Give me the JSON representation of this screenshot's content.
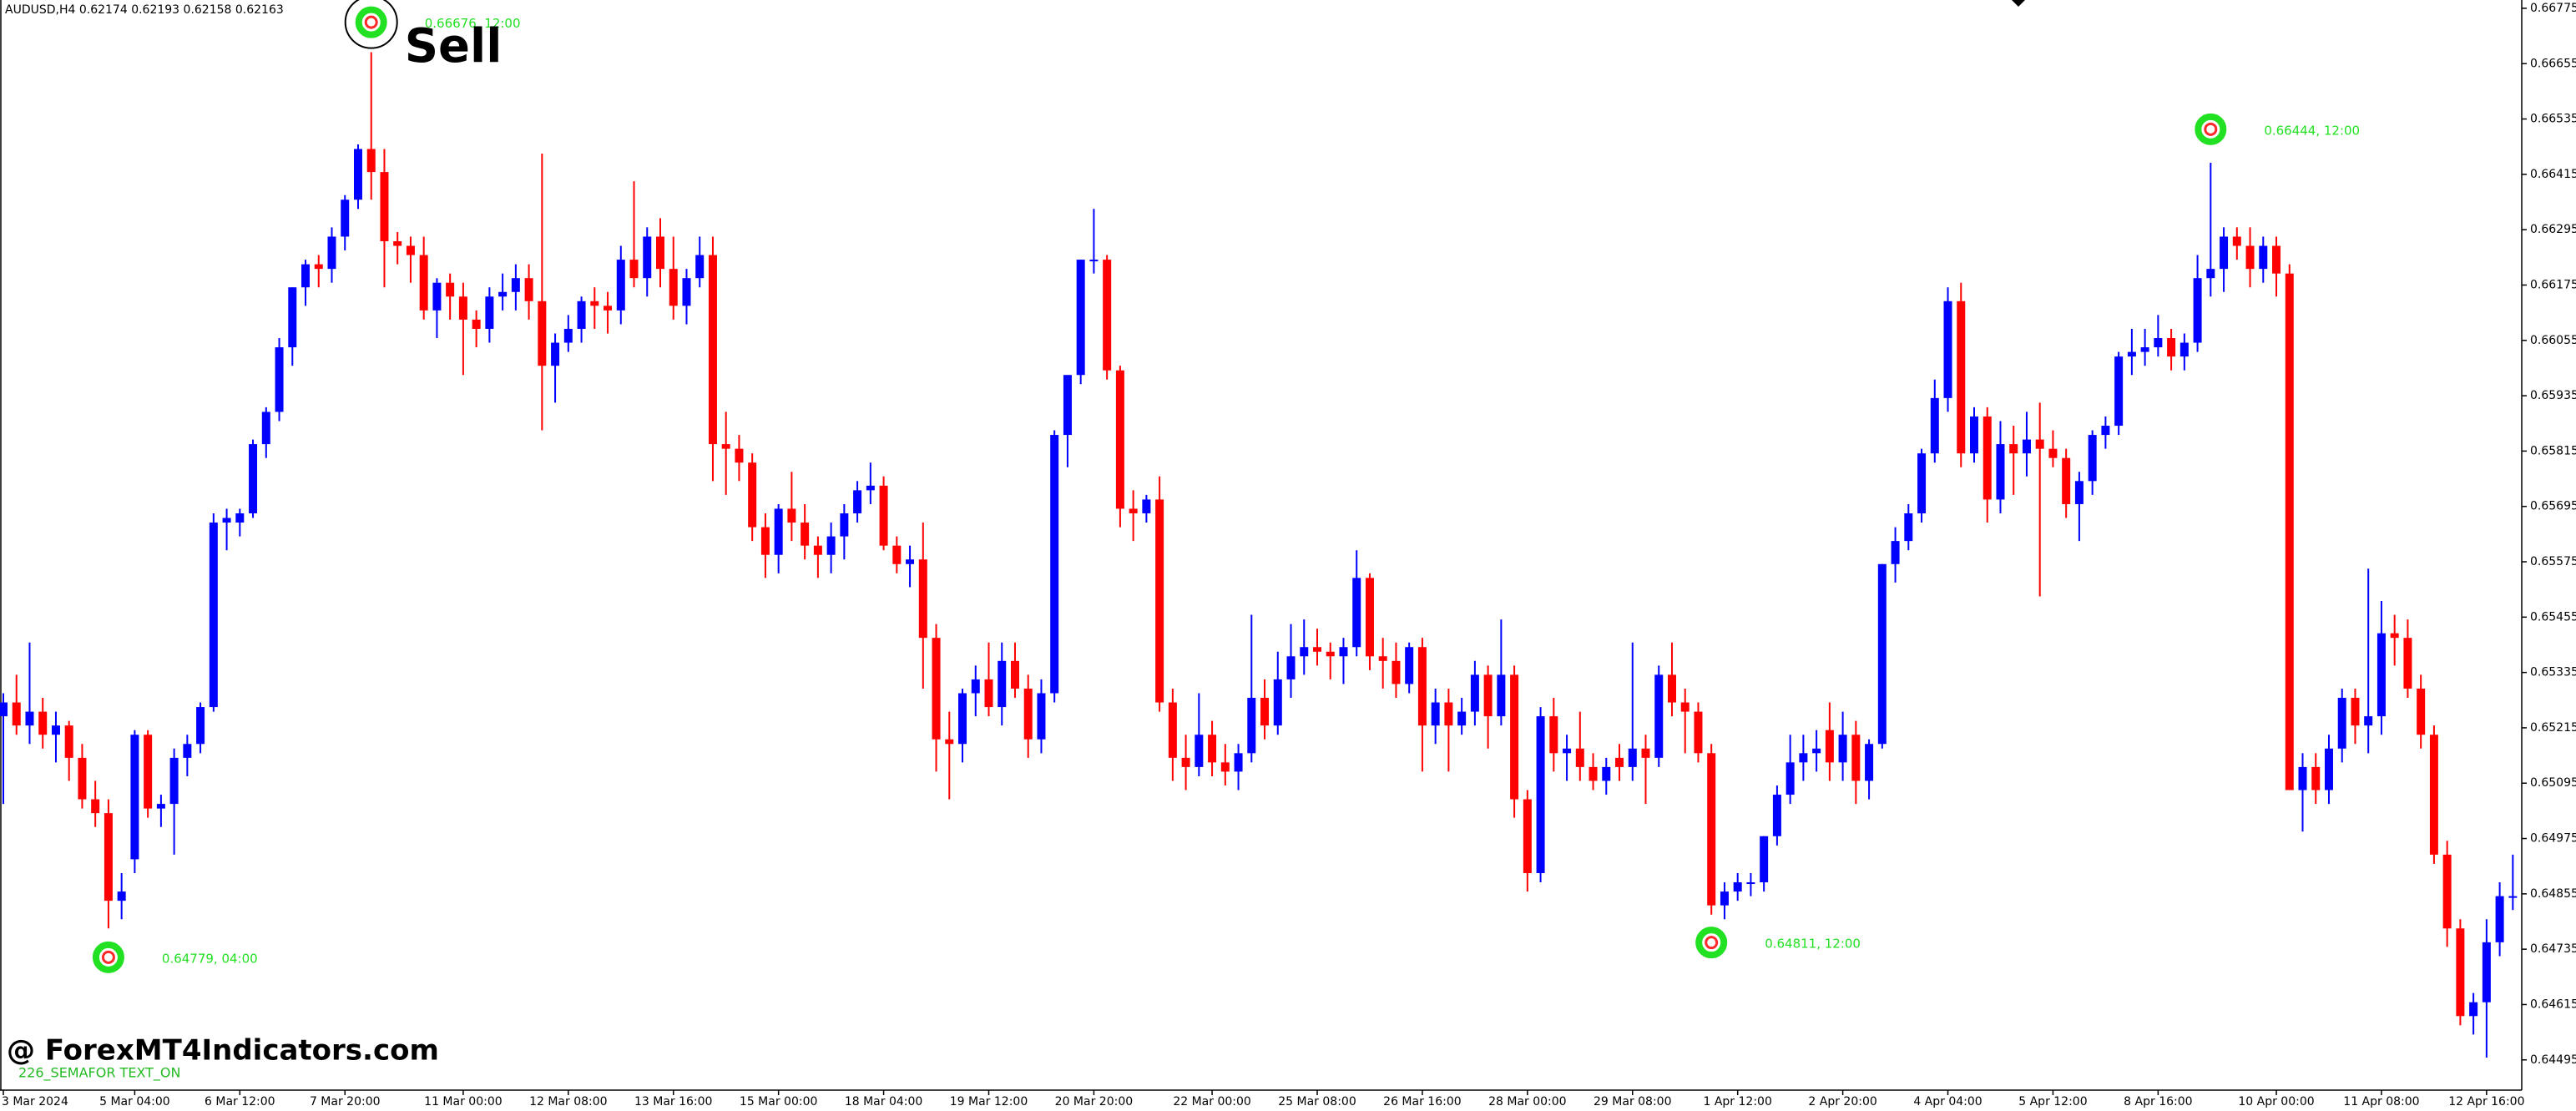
{
  "chart_data": {
    "type": "candlestick",
    "title": "AUDUSD,H4  0.62174 0.62193 0.62158 0.62163",
    "up_color": "#0000ff",
    "down_color": "#ff0000",
    "watermark": "@ ForexMT4Indicators.com",
    "indicator_label": "226_SEMAFOR TEXT_ON",
    "annotations": [
      {
        "label": "0.66676, 12:00",
        "value": 0.66676,
        "signal": "Sell"
      },
      {
        "label": "0.64779, 04:00",
        "value": 0.64779
      },
      {
        "label": "0.64811, 12:00",
        "value": 0.64811
      },
      {
        "label": "0.66444, 12:00",
        "value": 0.66444
      }
    ],
    "ylim": [
      0.64424,
      0.66793
    ],
    "yticks": [
      0.66775,
      0.66655,
      0.66535,
      0.66415,
      0.66295,
      0.66175,
      0.66055,
      0.65935,
      0.65815,
      0.65695,
      0.65575,
      0.65455,
      0.65335,
      0.65215,
      0.65095,
      0.64975,
      0.64855,
      0.64735,
      0.64615,
      0.64495
    ],
    "categories": [
      "3 Mar 2024",
      null,
      null,
      null,
      null,
      null,
      null,
      null,
      null,
      null,
      "5 Mar 04:00",
      null,
      null,
      null,
      null,
      null,
      null,
      null,
      "6 Mar 12:00",
      null,
      null,
      null,
      null,
      null,
      null,
      null,
      "7 Mar 20:00",
      null,
      null,
      null,
      null,
      null,
      null,
      null,
      null,
      "11 Mar 00:00",
      null,
      null,
      null,
      null,
      null,
      null,
      null,
      "12 Mar 08:00",
      null,
      null,
      null,
      null,
      null,
      null,
      null,
      "13 Mar 16:00",
      null,
      null,
      null,
      null,
      null,
      null,
      null,
      "15 Mar 00:00",
      null,
      null,
      null,
      null,
      null,
      null,
      null,
      "18 Mar 04:00",
      null,
      null,
      null,
      null,
      null,
      null,
      null,
      "19 Mar 12:00",
      null,
      null,
      null,
      null,
      null,
      null,
      null,
      "20 Mar 20:00",
      null,
      null,
      null,
      null,
      null,
      null,
      null,
      null,
      "22 Mar 00:00",
      null,
      null,
      null,
      null,
      null,
      null,
      null,
      "25 Mar 08:00",
      null,
      null,
      null,
      null,
      null,
      null,
      null,
      "26 Mar 16:00",
      null,
      null,
      null,
      null,
      null,
      null,
      null,
      "28 Mar 00:00",
      null,
      null,
      null,
      null,
      null,
      null,
      null,
      "29 Mar 08:00",
      null,
      null,
      null,
      null,
      null,
      null,
      null,
      "1 Apr 12:00",
      null,
      null,
      null,
      null,
      null,
      null,
      null,
      "2 Apr 20:00",
      null,
      null,
      null,
      null,
      null,
      null,
      null,
      "4 Apr 04:00",
      null,
      null,
      null,
      null,
      null,
      null,
      null,
      "5 Apr 12:00",
      null,
      null,
      null,
      null,
      null,
      null,
      null,
      "8 Apr 16:00",
      null,
      null,
      null,
      null,
      null,
      null,
      null,
      null,
      "10 Apr 00:00",
      null,
      null,
      null,
      null,
      null,
      null,
      null,
      "11 Apr 08:00",
      null,
      null,
      null,
      null,
      null,
      null,
      null,
      "12 Apr 16:00",
      null,
      null
    ],
    "ohlc": [
      [
        0.6524,
        0.6529,
        0.6505,
        0.6527
      ],
      [
        0.6527,
        0.6533,
        0.652,
        0.6522
      ],
      [
        0.6522,
        0.654,
        0.6518,
        0.6525
      ],
      [
        0.6525,
        0.6528,
        0.6517,
        0.652
      ],
      [
        0.652,
        0.6525,
        0.6514,
        0.6522
      ],
      [
        0.6522,
        0.6523,
        0.651,
        0.6515
      ],
      [
        0.6515,
        0.6518,
        0.6504,
        0.6506
      ],
      [
        0.6506,
        0.651,
        0.65,
        0.6503
      ],
      [
        0.6503,
        0.6506,
        0.6478,
        0.6484
      ],
      [
        0.6484,
        0.649,
        0.648,
        0.6486
      ],
      [
        0.6493,
        0.6521,
        0.649,
        0.652
      ],
      [
        0.652,
        0.6521,
        0.6502,
        0.6504
      ],
      [
        0.6504,
        0.6507,
        0.65,
        0.6505
      ],
      [
        0.6505,
        0.6517,
        0.6494,
        0.6515
      ],
      [
        0.6515,
        0.652,
        0.6511,
        0.6518
      ],
      [
        0.6518,
        0.6527,
        0.6516,
        0.6526
      ],
      [
        0.6526,
        0.6568,
        0.6525,
        0.6566
      ],
      [
        0.6566,
        0.6569,
        0.656,
        0.6567
      ],
      [
        0.6566,
        0.6569,
        0.6563,
        0.6568
      ],
      [
        0.6568,
        0.6584,
        0.6567,
        0.6583
      ],
      [
        0.6583,
        0.6591,
        0.658,
        0.659
      ],
      [
        0.659,
        0.6606,
        0.6588,
        0.6604
      ],
      [
        0.6604,
        0.6617,
        0.66,
        0.6617
      ],
      [
        0.6617,
        0.6623,
        0.6613,
        0.6622
      ],
      [
        0.6622,
        0.6624,
        0.6617,
        0.6621
      ],
      [
        0.6621,
        0.663,
        0.6618,
        0.6628
      ],
      [
        0.6628,
        0.6637,
        0.6625,
        0.6636
      ],
      [
        0.6636,
        0.6648,
        0.6634,
        0.6647
      ],
      [
        0.6647,
        0.6668,
        0.6636,
        0.6642
      ],
      [
        0.6642,
        0.6647,
        0.6617,
        0.6627
      ],
      [
        0.6627,
        0.6629,
        0.6622,
        0.6626
      ],
      [
        0.6626,
        0.6628,
        0.6618,
        0.6624
      ],
      [
        0.6624,
        0.6628,
        0.661,
        0.6612
      ],
      [
        0.6612,
        0.6619,
        0.6606,
        0.6618
      ],
      [
        0.6618,
        0.662,
        0.661,
        0.6615
      ],
      [
        0.6615,
        0.6618,
        0.6598,
        0.661
      ],
      [
        0.661,
        0.6612,
        0.6604,
        0.6608
      ],
      [
        0.6608,
        0.6617,
        0.6605,
        0.6615
      ],
      [
        0.6615,
        0.662,
        0.6612,
        0.6616
      ],
      [
        0.6616,
        0.6622,
        0.6612,
        0.6619
      ],
      [
        0.6619,
        0.6622,
        0.661,
        0.6614
      ],
      [
        0.6614,
        0.6646,
        0.6586,
        0.66
      ],
      [
        0.66,
        0.6607,
        0.6592,
        0.6605
      ],
      [
        0.6605,
        0.6611,
        0.6603,
        0.6608
      ],
      [
        0.6608,
        0.6615,
        0.6605,
        0.6614
      ],
      [
        0.6614,
        0.6617,
        0.6608,
        0.6613
      ],
      [
        0.6613,
        0.6616,
        0.6607,
        0.6612
      ],
      [
        0.6612,
        0.6626,
        0.6609,
        0.6623
      ],
      [
        0.6623,
        0.664,
        0.6617,
        0.6619
      ],
      [
        0.6619,
        0.663,
        0.6615,
        0.6628
      ],
      [
        0.6628,
        0.6632,
        0.6617,
        0.6621
      ],
      [
        0.6621,
        0.6628,
        0.661,
        0.6613
      ],
      [
        0.6613,
        0.6621,
        0.6609,
        0.6619
      ],
      [
        0.6619,
        0.6628,
        0.6617,
        0.6624
      ],
      [
        0.6624,
        0.6628,
        0.6575,
        0.6583
      ],
      [
        0.6583,
        0.659,
        0.6572,
        0.6582
      ],
      [
        0.6582,
        0.6585,
        0.6575,
        0.6579
      ],
      [
        0.6579,
        0.6581,
        0.6562,
        0.6565
      ],
      [
        0.6565,
        0.6568,
        0.6554,
        0.6559
      ],
      [
        0.6559,
        0.657,
        0.6555,
        0.6569
      ],
      [
        0.6569,
        0.6577,
        0.6562,
        0.6566
      ],
      [
        0.6566,
        0.657,
        0.6558,
        0.6561
      ],
      [
        0.6561,
        0.6563,
        0.6554,
        0.6559
      ],
      [
        0.6559,
        0.6566,
        0.6555,
        0.6563
      ],
      [
        0.6563,
        0.657,
        0.6558,
        0.6568
      ],
      [
        0.6568,
        0.6575,
        0.6566,
        0.6573
      ],
      [
        0.6573,
        0.6579,
        0.657,
        0.6574
      ],
      [
        0.6574,
        0.6576,
        0.656,
        0.6561
      ],
      [
        0.6561,
        0.6563,
        0.6555,
        0.6557
      ],
      [
        0.6557,
        0.6561,
        0.6552,
        0.6558
      ],
      [
        0.6558,
        0.6566,
        0.653,
        0.6541
      ],
      [
        0.6541,
        0.6544,
        0.6512,
        0.6519
      ],
      [
        0.6519,
        0.6525,
        0.6506,
        0.6518
      ],
      [
        0.6518,
        0.653,
        0.6514,
        0.6529
      ],
      [
        0.6529,
        0.6535,
        0.6524,
        0.6532
      ],
      [
        0.6532,
        0.654,
        0.6524,
        0.6526
      ],
      [
        0.6526,
        0.654,
        0.6522,
        0.6536
      ],
      [
        0.6536,
        0.654,
        0.6528,
        0.653
      ],
      [
        0.653,
        0.6533,
        0.6515,
        0.6519
      ],
      [
        0.6519,
        0.6532,
        0.6516,
        0.6529
      ],
      [
        0.6529,
        0.6586,
        0.6527,
        0.6585
      ],
      [
        0.6585,
        0.6596,
        0.6578,
        0.6598
      ],
      [
        0.6598,
        0.6623,
        0.6596,
        0.6623
      ],
      [
        0.6623,
        0.6634,
        0.662,
        0.6623
      ],
      [
        0.6623,
        0.6624,
        0.6597,
        0.6599
      ],
      [
        0.6599,
        0.66,
        0.6565,
        0.6569
      ],
      [
        0.6569,
        0.6573,
        0.6562,
        0.6568
      ],
      [
        0.6568,
        0.6572,
        0.6566,
        0.6571
      ],
      [
        0.6571,
        0.6576,
        0.6525,
        0.6527
      ],
      [
        0.6527,
        0.653,
        0.651,
        0.6515
      ],
      [
        0.6515,
        0.652,
        0.6508,
        0.6513
      ],
      [
        0.6513,
        0.6529,
        0.6511,
        0.652
      ],
      [
        0.652,
        0.6523,
        0.6511,
        0.6514
      ],
      [
        0.6514,
        0.6518,
        0.6509,
        0.6512
      ],
      [
        0.6512,
        0.6518,
        0.6508,
        0.6516
      ],
      [
        0.6516,
        0.6546,
        0.6514,
        0.6528
      ],
      [
        0.6528,
        0.6532,
        0.6519,
        0.6522
      ],
      [
        0.6522,
        0.6538,
        0.652,
        0.6532
      ],
      [
        0.6532,
        0.6544,
        0.6528,
        0.6537
      ],
      [
        0.6537,
        0.6545,
        0.6533,
        0.6539
      ],
      [
        0.6539,
        0.6543,
        0.6535,
        0.6538
      ],
      [
        0.6538,
        0.654,
        0.6532,
        0.6537
      ],
      [
        0.6537,
        0.6541,
        0.6531,
        0.6539
      ],
      [
        0.6539,
        0.656,
        0.6537,
        0.6554
      ],
      [
        0.6554,
        0.6555,
        0.6534,
        0.6537
      ],
      [
        0.6537,
        0.6541,
        0.653,
        0.6536
      ],
      [
        0.6536,
        0.654,
        0.6528,
        0.6531
      ],
      [
        0.6531,
        0.654,
        0.6529,
        0.6539
      ],
      [
        0.6539,
        0.6541,
        0.6512,
        0.6522
      ],
      [
        0.6522,
        0.653,
        0.6518,
        0.6527
      ],
      [
        0.6527,
        0.653,
        0.6512,
        0.6522
      ],
      [
        0.6522,
        0.6528,
        0.652,
        0.6525
      ],
      [
        0.6525,
        0.6536,
        0.6522,
        0.6533
      ],
      [
        0.6533,
        0.6535,
        0.6517,
        0.6524
      ],
      [
        0.6524,
        0.6545,
        0.6522,
        0.6533
      ],
      [
        0.6533,
        0.6535,
        0.6502,
        0.6506
      ],
      [
        0.6506,
        0.6508,
        0.6486,
        0.649
      ],
      [
        0.649,
        0.6526,
        0.6488,
        0.6524
      ],
      [
        0.6524,
        0.6528,
        0.6512,
        0.6516
      ],
      [
        0.6516,
        0.652,
        0.651,
        0.6517
      ],
      [
        0.6517,
        0.6525,
        0.651,
        0.6513
      ],
      [
        0.6513,
        0.6516,
        0.6508,
        0.651
      ],
      [
        0.651,
        0.6515,
        0.6507,
        0.6513
      ],
      [
        0.6515,
        0.6518,
        0.651,
        0.6513
      ],
      [
        0.6513,
        0.654,
        0.651,
        0.6517
      ],
      [
        0.6517,
        0.652,
        0.6505,
        0.6515
      ],
      [
        0.6515,
        0.6535,
        0.6513,
        0.6533
      ],
      [
        0.6533,
        0.654,
        0.6524,
        0.6527
      ],
      [
        0.6527,
        0.653,
        0.6516,
        0.6525
      ],
      [
        0.6525,
        0.6527,
        0.6514,
        0.6516
      ],
      [
        0.6516,
        0.6518,
        0.6481,
        0.6483
      ],
      [
        0.6483,
        0.6488,
        0.648,
        0.6486
      ],
      [
        0.6486,
        0.649,
        0.6484,
        0.6488
      ],
      [
        0.6488,
        0.649,
        0.6485,
        0.6488
      ],
      [
        0.6488,
        0.6498,
        0.6486,
        0.6498
      ],
      [
        0.6498,
        0.6509,
        0.6496,
        0.6507
      ],
      [
        0.6507,
        0.652,
        0.6505,
        0.6514
      ],
      [
        0.6514,
        0.652,
        0.651,
        0.6516
      ],
      [
        0.6516,
        0.6521,
        0.6512,
        0.6517
      ],
      [
        0.6521,
        0.6527,
        0.651,
        0.6514
      ],
      [
        0.6514,
        0.6525,
        0.651,
        0.652
      ],
      [
        0.652,
        0.6523,
        0.6505,
        0.651
      ],
      [
        0.651,
        0.6519,
        0.6506,
        0.6518
      ],
      [
        0.6518,
        0.6557,
        0.6517,
        0.6557
      ],
      [
        0.6557,
        0.6565,
        0.6553,
        0.6562
      ],
      [
        0.6562,
        0.657,
        0.656,
        0.6568
      ],
      [
        0.6568,
        0.6582,
        0.6566,
        0.6581
      ],
      [
        0.6581,
        0.6597,
        0.6579,
        0.6593
      ],
      [
        0.6593,
        0.6617,
        0.659,
        0.6614
      ],
      [
        0.6614,
        0.6618,
        0.6578,
        0.6581
      ],
      [
        0.6581,
        0.6591,
        0.6579,
        0.6589
      ],
      [
        0.6589,
        0.6591,
        0.6566,
        0.6571
      ],
      [
        0.6571,
        0.6588,
        0.6568,
        0.6583
      ],
      [
        0.6583,
        0.6587,
        0.6572,
        0.6581
      ],
      [
        0.6581,
        0.659,
        0.6576,
        0.6584
      ],
      [
        0.6584,
        0.6592,
        0.655,
        0.6582
      ],
      [
        0.6582,
        0.6586,
        0.6578,
        0.658
      ],
      [
        0.658,
        0.6582,
        0.6567,
        0.657
      ],
      [
        0.657,
        0.6577,
        0.6562,
        0.6575
      ],
      [
        0.6575,
        0.6586,
        0.6572,
        0.6585
      ],
      [
        0.6585,
        0.6589,
        0.6582,
        0.6587
      ],
      [
        0.6587,
        0.6603,
        0.6585,
        0.6602
      ],
      [
        0.6602,
        0.6608,
        0.6598,
        0.6603
      ],
      [
        0.6603,
        0.6608,
        0.66,
        0.6604
      ],
      [
        0.6604,
        0.6611,
        0.6602,
        0.6606
      ],
      [
        0.6606,
        0.6608,
        0.6599,
        0.6602
      ],
      [
        0.6602,
        0.6607,
        0.6599,
        0.6605
      ],
      [
        0.6605,
        0.6624,
        0.6603,
        0.6619
      ],
      [
        0.6619,
        0.6644,
        0.6615,
        0.6621
      ],
      [
        0.6621,
        0.663,
        0.6616,
        0.6628
      ],
      [
        0.6628,
        0.663,
        0.6623,
        0.6626
      ],
      [
        0.6626,
        0.663,
        0.6617,
        0.6621
      ],
      [
        0.6621,
        0.6628,
        0.6618,
        0.6626
      ],
      [
        0.6626,
        0.6628,
        0.6615,
        0.662
      ],
      [
        0.662,
        0.6622,
        0.6508,
        0.6508
      ],
      [
        0.6508,
        0.6516,
        0.6499,
        0.6513
      ],
      [
        0.6513,
        0.6516,
        0.6505,
        0.6508
      ],
      [
        0.6508,
        0.652,
        0.6505,
        0.6517
      ],
      [
        0.6517,
        0.653,
        0.6514,
        0.6528
      ],
      [
        0.6528,
        0.653,
        0.6518,
        0.6522
      ],
      [
        0.6522,
        0.6556,
        0.6516,
        0.6524
      ],
      [
        0.6524,
        0.6549,
        0.652,
        0.6542
      ],
      [
        0.6542,
        0.6546,
        0.6535,
        0.6541
      ],
      [
        0.6541,
        0.6545,
        0.6528,
        0.653
      ],
      [
        0.653,
        0.6533,
        0.6517,
        0.652
      ],
      [
        0.652,
        0.6522,
        0.6492,
        0.6494
      ],
      [
        0.6494,
        0.6497,
        0.6474,
        0.6478
      ],
      [
        0.6478,
        0.648,
        0.6457,
        0.6459
      ],
      [
        0.6459,
        0.6464,
        0.6455,
        0.6462
      ],
      [
        0.6462,
        0.648,
        0.645,
        0.6475
      ],
      [
        0.6475,
        0.6488,
        0.6472,
        0.6485
      ],
      [
        0.6485,
        0.6494,
        0.6482,
        0.6485
      ]
    ]
  }
}
